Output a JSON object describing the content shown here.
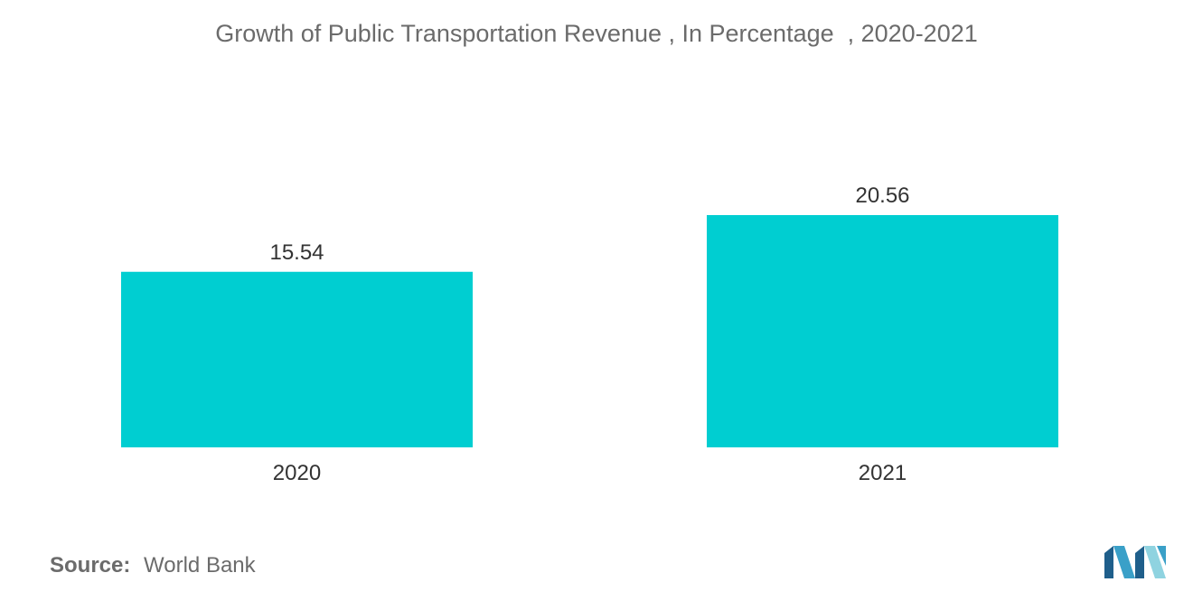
{
  "chart_data": {
    "type": "bar",
    "title": "Growth of Public Transportation Revenue , In Percentage  , 2020-2021",
    "categories": [
      "2020",
      "2021"
    ],
    "values": [
      15.54,
      20.56
    ],
    "value_labels": [
      "15.54",
      "20.56"
    ],
    "xlabel": "",
    "ylabel": "",
    "ylim": [
      0,
      20.56
    ],
    "grid": false,
    "legend": "none",
    "bar_color": "#00ced1"
  },
  "source": {
    "label": "Source:",
    "text": "World Bank"
  },
  "logo": {
    "icon": "mordor-intelligence-logo-icon",
    "colors": [
      "#1f5f8b",
      "#3aa0c8",
      "#8fd3e0"
    ]
  }
}
